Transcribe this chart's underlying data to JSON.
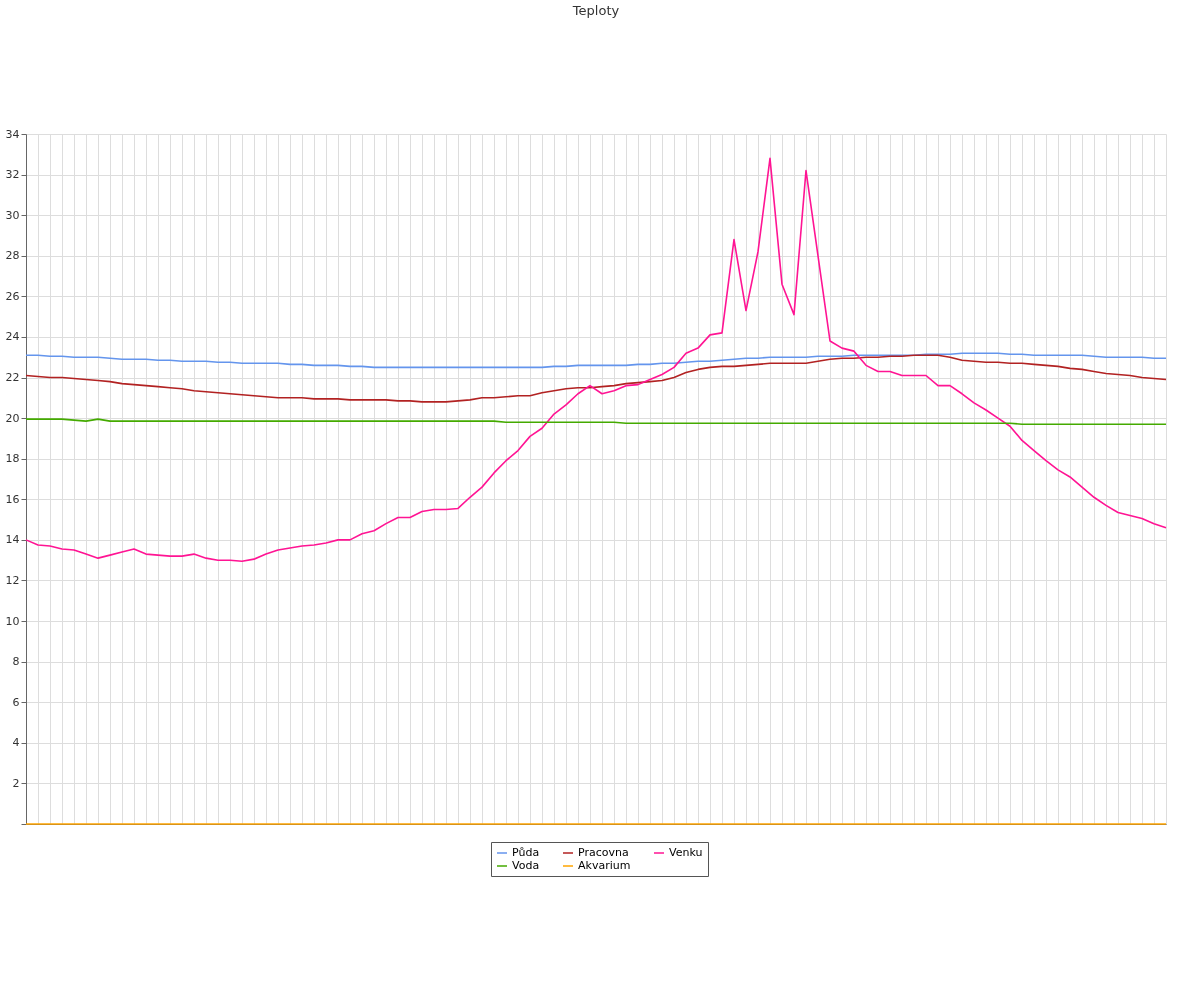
{
  "chart_data": {
    "type": "line",
    "title": "Teploty",
    "categories": [
      null,
      null,
      null,
      null,
      null,
      null,
      null,
      null,
      null,
      null,
      null,
      null,
      null,
      null,
      null,
      null,
      null,
      null,
      null,
      null,
      null,
      null,
      null,
      null,
      null,
      null,
      null,
      null,
      null,
      null,
      null,
      null,
      null,
      null,
      null,
      null,
      null,
      null,
      null,
      null,
      null,
      null,
      null,
      null,
      null,
      null,
      null,
      null,
      null,
      null,
      null,
      null,
      null,
      null,
      null,
      null,
      null,
      null,
      null,
      null,
      null,
      null,
      null,
      null,
      null,
      null,
      null,
      null,
      null,
      null,
      null,
      null,
      null,
      null,
      null,
      null,
      null,
      null,
      null,
      null,
      null,
      null,
      null,
      null,
      null,
      null,
      null,
      null,
      null,
      null,
      null,
      null,
      null,
      null,
      null,
      null
    ],
    "ylim": [
      0,
      34
    ],
    "yticks": [
      {
        "value": 0,
        "label": null
      },
      2,
      4,
      6,
      8,
      10,
      12,
      14,
      16,
      18,
      20,
      22,
      24,
      26,
      28,
      30,
      32,
      34
    ],
    "tick_labels": "y",
    "grid": true,
    "legend": "bottom",
    "marker": "none",
    "line_style": "solid",
    "series": [
      {
        "name": "Půda",
        "color": "#6495ed",
        "values": [
          23.1,
          23.1,
          23.05,
          23.05,
          23.0,
          23.0,
          23.0,
          22.95,
          22.9,
          22.9,
          22.9,
          22.85,
          22.85,
          22.8,
          22.8,
          22.8,
          22.75,
          22.75,
          22.7,
          22.7,
          22.7,
          22.7,
          22.65,
          22.65,
          22.6,
          22.6,
          22.6,
          22.55,
          22.55,
          22.5,
          22.5,
          22.5,
          22.5,
          22.5,
          22.5,
          22.5,
          22.5,
          22.5,
          22.5,
          22.5,
          22.5,
          22.5,
          22.5,
          22.5,
          22.55,
          22.55,
          22.6,
          22.6,
          22.6,
          22.6,
          22.6,
          22.65,
          22.65,
          22.7,
          22.7,
          22.75,
          22.8,
          22.8,
          22.85,
          22.9,
          22.95,
          22.95,
          23.0,
          23.0,
          23.0,
          23.0,
          23.05,
          23.05,
          23.05,
          23.1,
          23.1,
          23.1,
          23.1,
          23.1,
          23.1,
          23.15,
          23.15,
          23.15,
          23.2,
          23.2,
          23.2,
          23.2,
          23.15,
          23.15,
          23.1,
          23.1,
          23.1,
          23.1,
          23.1,
          23.05,
          23.0,
          23.0,
          23.0,
          23.0,
          22.95,
          22.95
        ]
      },
      {
        "name": "Pracovna",
        "color": "#b22222",
        "values": [
          22.1,
          22.05,
          22.0,
          22.0,
          21.95,
          21.9,
          21.85,
          21.8,
          21.7,
          21.65,
          21.6,
          21.55,
          21.5,
          21.45,
          21.35,
          21.3,
          21.25,
          21.2,
          21.15,
          21.1,
          21.05,
          21.0,
          21.0,
          21.0,
          20.95,
          20.95,
          20.95,
          20.9,
          20.9,
          20.9,
          20.9,
          20.85,
          20.85,
          20.8,
          20.8,
          20.8,
          20.85,
          20.9,
          21.0,
          21.0,
          21.05,
          21.1,
          21.1,
          21.25,
          21.35,
          21.45,
          21.5,
          21.5,
          21.55,
          21.6,
          21.7,
          21.75,
          21.8,
          21.85,
          22.0,
          22.25,
          22.4,
          22.5,
          22.55,
          22.55,
          22.6,
          22.65,
          22.7,
          22.7,
          22.7,
          22.7,
          22.8,
          22.9,
          22.95,
          22.95,
          23.0,
          23.0,
          23.05,
          23.05,
          23.1,
          23.1,
          23.1,
          23.0,
          22.85,
          22.8,
          22.75,
          22.75,
          22.7,
          22.7,
          22.65,
          22.6,
          22.55,
          22.45,
          22.4,
          22.3,
          22.2,
          22.15,
          22.1,
          22.0,
          21.95,
          21.9
        ]
      },
      {
        "name": "Venku",
        "color": "#ff1493",
        "values": [
          14.0,
          13.75,
          13.7,
          13.55,
          13.5,
          13.3,
          13.1,
          13.25,
          13.4,
          13.55,
          13.3,
          13.25,
          13.2,
          13.2,
          13.3,
          13.1,
          13.0,
          13.0,
          12.95,
          13.05,
          13.3,
          13.5,
          13.6,
          13.7,
          13.75,
          13.85,
          14.0,
          14.0,
          14.3,
          14.45,
          14.8,
          15.1,
          15.1,
          15.4,
          15.5,
          15.5,
          15.55,
          16.1,
          16.6,
          17.3,
          17.9,
          18.4,
          19.1,
          19.5,
          20.2,
          20.65,
          21.2,
          21.6,
          21.2,
          21.35,
          21.6,
          21.65,
          21.9,
          22.15,
          22.5,
          23.2,
          23.45,
          24.1,
          24.2,
          28.8,
          25.3,
          28.2,
          32.8,
          26.6,
          25.1,
          32.2,
          28.0,
          23.8,
          23.45,
          23.3,
          22.6,
          22.3,
          22.3,
          22.1,
          22.1,
          22.1,
          21.6,
          21.6,
          21.2,
          20.75,
          20.4,
          20.0,
          19.6,
          18.9,
          18.4,
          17.9,
          17.45,
          17.1,
          16.6,
          16.1,
          15.7,
          15.35,
          15.2,
          15.05,
          14.8,
          14.6
        ]
      },
      {
        "name": "Voda",
        "color": "#44aa00",
        "values": [
          19.95,
          19.95,
          19.95,
          19.95,
          19.9,
          19.85,
          19.95,
          19.85,
          19.85,
          19.85,
          19.85,
          19.85,
          19.85,
          19.85,
          19.85,
          19.85,
          19.85,
          19.85,
          19.85,
          19.85,
          19.85,
          19.85,
          19.85,
          19.85,
          19.85,
          19.85,
          19.85,
          19.85,
          19.85,
          19.85,
          19.85,
          19.85,
          19.85,
          19.85,
          19.85,
          19.85,
          19.85,
          19.85,
          19.85,
          19.85,
          19.8,
          19.8,
          19.8,
          19.8,
          19.8,
          19.8,
          19.8,
          19.8,
          19.8,
          19.8,
          19.75,
          19.75,
          19.75,
          19.75,
          19.75,
          19.75,
          19.75,
          19.75,
          19.75,
          19.75,
          19.75,
          19.75,
          19.75,
          19.75,
          19.75,
          19.75,
          19.75,
          19.75,
          19.75,
          19.75,
          19.75,
          19.75,
          19.75,
          19.75,
          19.75,
          19.75,
          19.75,
          19.75,
          19.75,
          19.75,
          19.75,
          19.75,
          19.75,
          19.7,
          19.7,
          19.7,
          19.7,
          19.7,
          19.7,
          19.7,
          19.7,
          19.7,
          19.7,
          19.7,
          19.7,
          19.7
        ]
      },
      {
        "name": "Akvarium",
        "color": "#ffa500",
        "values": [
          0,
          0,
          0,
          0,
          0,
          0,
          0,
          0,
          0,
          0,
          0,
          0,
          0,
          0,
          0,
          0,
          0,
          0,
          0,
          0,
          0,
          0,
          0,
          0,
          0,
          0,
          0,
          0,
          0,
          0,
          0,
          0,
          0,
          0,
          0,
          0,
          0,
          0,
          0,
          0,
          0,
          0,
          0,
          0,
          0,
          0,
          0,
          0,
          0,
          0,
          0,
          0,
          0,
          0,
          0,
          0,
          0,
          0,
          0,
          0,
          0,
          0,
          0,
          0,
          0,
          0,
          0,
          0,
          0,
          0,
          0,
          0,
          0,
          0,
          0,
          0,
          0,
          0,
          0,
          0,
          0,
          0,
          0,
          0,
          0,
          0,
          0,
          0,
          0,
          0,
          0,
          0,
          0,
          0,
          0,
          0
        ]
      }
    ]
  }
}
